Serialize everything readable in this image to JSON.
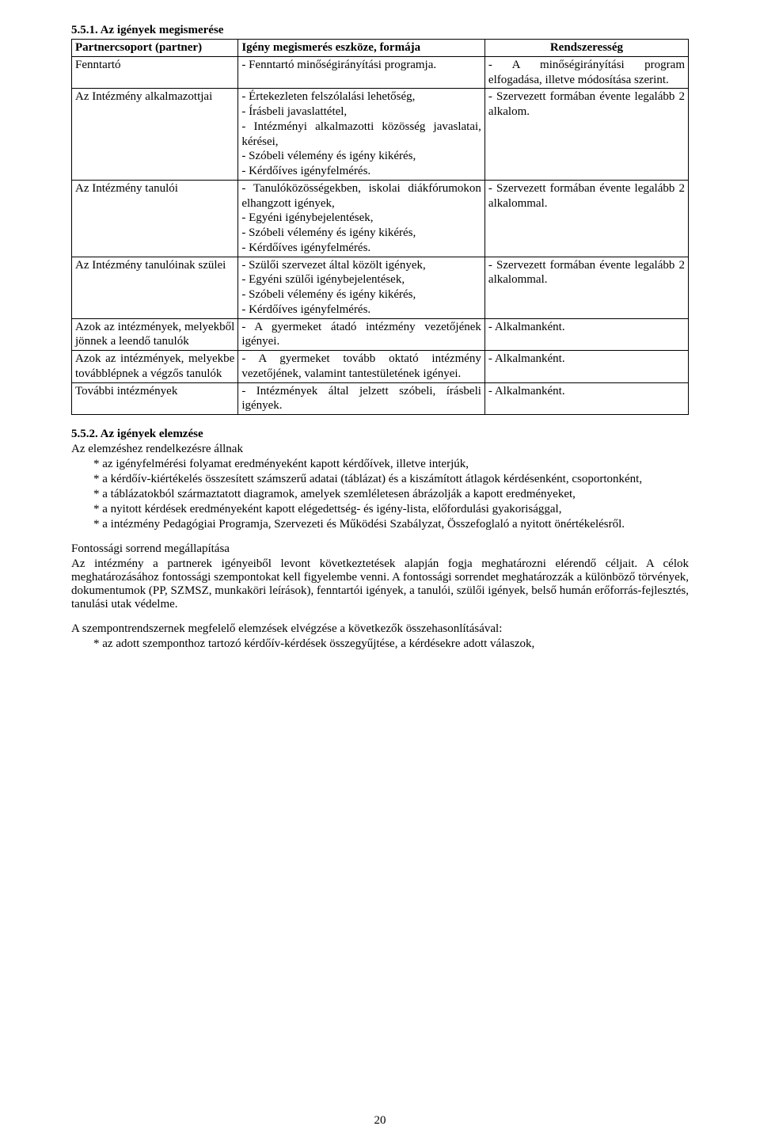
{
  "section1": {
    "heading": "5.5.1. Az igények megismerése",
    "headers": {
      "partner": "Partnercsoport (partner)",
      "form": "Igény megismerés eszköze, formája",
      "regularity": "Rendszeresség"
    },
    "rows": [
      {
        "partner": "Fenntartó",
        "form": "- Fenntartó minőségirányítási programja.",
        "regularity": "- A minőségirányítási program elfogadása, illetve módosítása szerint."
      },
      {
        "partner": "Az Intézmény alkalmazottjai",
        "form": "- Értekezleten felszólalási lehetőség,\n- Írásbeli javaslattétel,\n- Intézményi alkalmazotti közösség javaslatai, kérései,\n- Szóbeli vélemény és igény kikérés,\n- Kérdőíves igényfelmérés.",
        "regularity": "- Szervezett formában évente legalább 2 alkalom."
      },
      {
        "partner": "Az Intézmény tanulói",
        "form": "- Tanulóközösségekben, iskolai diákfórumokon elhangzott igények,\n- Egyéni igénybejelentések,\n- Szóbeli vélemény és igény kikérés,\n- Kérdőíves igényfelmérés.",
        "regularity": "- Szervezett formában évente legalább 2 alkalommal."
      },
      {
        "partner": "Az Intézmény tanulóinak szülei",
        "form": "- Szülői szervezet által közölt igények,\n- Egyéni szülői igénybejelentések,\n- Szóbeli vélemény és igény kikérés,\n- Kérdőíves igényfelmérés.",
        "regularity": "- Szervezett formában évente legalább 2 alkalommal."
      },
      {
        "partner": "Azok az intézmények, melyekből jönnek a leendő tanulók",
        "form": "- A gyermeket átadó intézmény vezetőjének igényei.",
        "regularity": "- Alkalmanként."
      },
      {
        "partner": "Azok az intézmények, melyekbe továbblépnek a végzős tanulók",
        "form": "- A gyermeket tovább oktató intézmény vezetőjének, valamint tantestületének igényei.",
        "regularity": "- Alkalmanként."
      },
      {
        "partner": "További intézmények",
        "form": "- Intézmények által jelzett szóbeli, írásbeli igények.",
        "regularity": "- Alkalmanként."
      }
    ]
  },
  "section2": {
    "heading": "5.5.2. Az igények elemzése",
    "intro": "Az elemzéshez rendelkezésre állnak",
    "bullets": [
      "* az igényfelmérési folyamat eredményeként kapott kérdőívek, illetve interjúk,",
      "* a kérdőív-kiértékelés összesített számszerű adatai (táblázat) és a kiszámított átlagok kérdésenként, csoportonként,",
      "* a táblázatokból származtatott diagramok, amelyek szemléletesen ábrázolják a kapott eredményeket,",
      "* a nyitott kérdések eredményeként kapott elégedettség- és igény-lista, előfordulási gyakorisággal,",
      "* a intézmény Pedagógiai Programja, Szervezeti és Működési Szabályzat, Összefoglaló a nyitott önértékelésről."
    ],
    "priority_heading": "Fontossági sorrend megállapítása",
    "priority_body": "Az intézmény a partnerek igényeiből levont következtetések alapján fogja meghatározni elérendő céljait. A célok meghatározásához fontossági szempontokat kell figyelembe venni. A fontossági sorrendet meghatározzák a különböző törvények, dokumentumok (PP, SZMSZ, munkaköri leírások), fenntartói igények, a tanulói, szülői igények, belső humán erőforrás-fejlesztés, tanulási utak védelme.",
    "analysis_intro": "A szempontrendszernek megfelelő elemzések elvégzése a következők összehasonlításával:",
    "analysis_bullets": [
      "* az adott szemponthoz tartozó kérdőív-kérdések összegyűjtése, a kérdésekre adott válaszok,"
    ]
  },
  "page_number": "20"
}
